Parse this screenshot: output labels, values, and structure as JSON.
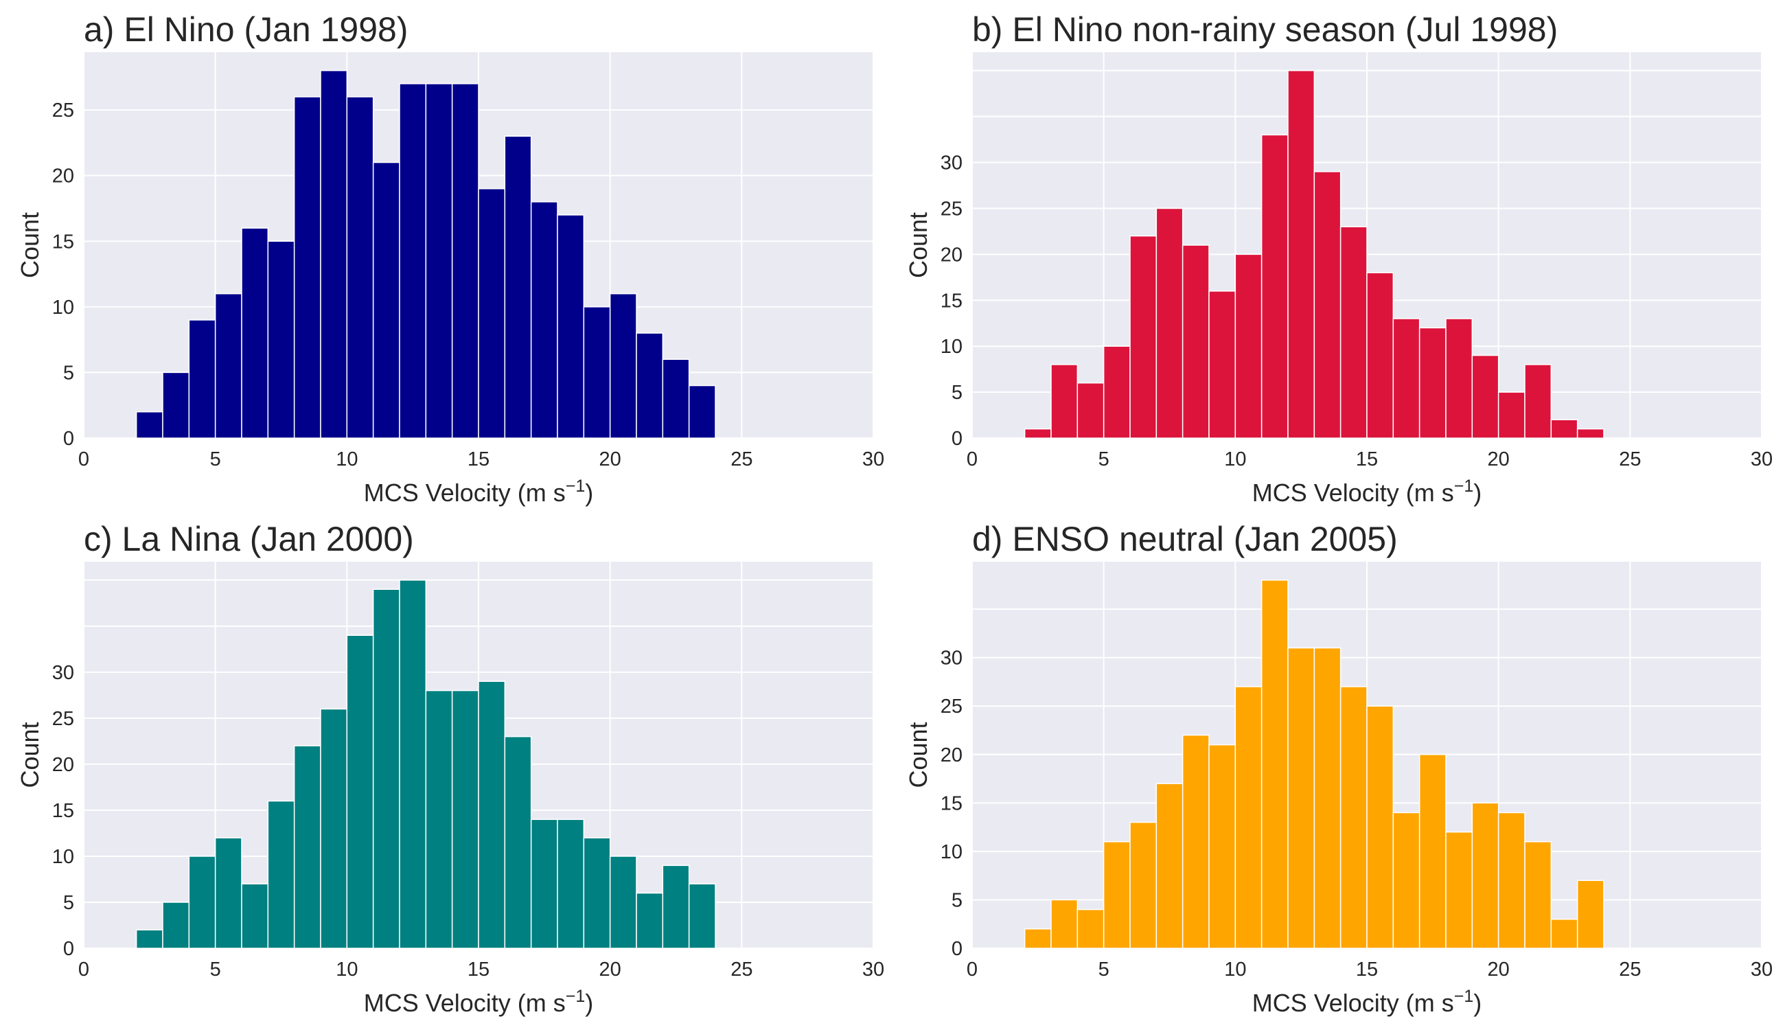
{
  "chart_data": [
    {
      "type": "bar",
      "title": "a) El Nino (Jan 1998)",
      "xlabel": "MCS Velocity (m s",
      "xlabel_sup": "−1",
      "xlabel_close": ")",
      "ylabel": "Count",
      "color": "#00008b",
      "bin_width": 1,
      "bin_start": [
        2,
        3,
        4,
        5,
        6,
        7,
        8,
        9,
        10,
        11,
        12,
        13,
        14,
        15,
        16,
        17,
        18,
        19,
        20,
        21,
        22,
        23
      ],
      "values": [
        2,
        5,
        9,
        11,
        16,
        15,
        26,
        28,
        26,
        21,
        27,
        27,
        27,
        19,
        23,
        18,
        17,
        10,
        11,
        8,
        6,
        4
      ],
      "xlim": [
        0,
        30
      ],
      "ylim": [
        0,
        29.4
      ],
      "xticks": [
        "0",
        "5",
        "10",
        "15",
        "20",
        "25",
        "30"
      ],
      "yticks": [
        "0",
        "5",
        "10",
        "15",
        "20",
        "25"
      ],
      "grid": true
    },
    {
      "type": "bar",
      "title": "b) El Nino non-rainy season (Jul 1998)",
      "xlabel": "MCS Velocity (m s",
      "xlabel_sup": "−1",
      "xlabel_close": ")",
      "ylabel": "Count",
      "color": "#dc143c",
      "bin_width": 1,
      "bin_start": [
        2,
        3,
        4,
        5,
        6,
        7,
        8,
        9,
        10,
        11,
        12,
        13,
        14,
        15,
        16,
        17,
        18,
        19,
        20,
        21,
        22,
        23
      ],
      "values": [
        1,
        8,
        6,
        10,
        22,
        25,
        21,
        16,
        20,
        33,
        40,
        29,
        23,
        18,
        13,
        12,
        13,
        9,
        5,
        8,
        2,
        1
      ],
      "xlim": [
        0,
        30
      ],
      "ylim": [
        0,
        42
      ],
      "xticks": [
        "0",
        "5",
        "10",
        "15",
        "20",
        "25",
        "30"
      ],
      "yticks": [
        "0",
        "5",
        "10",
        "15",
        "20",
        "25",
        "30"
      ],
      "grid": true
    },
    {
      "type": "bar",
      "title": "c) La Nina (Jan 2000)",
      "xlabel": "MCS Velocity (m s",
      "xlabel_sup": "−1",
      "xlabel_close": ")",
      "ylabel": "Count",
      "color": "#008080",
      "bin_width": 1,
      "bin_start": [
        2,
        3,
        4,
        5,
        6,
        7,
        8,
        9,
        10,
        11,
        12,
        13,
        14,
        15,
        16,
        17,
        18,
        19,
        20,
        21,
        22,
        23
      ],
      "values": [
        2,
        5,
        10,
        12,
        7,
        16,
        22,
        26,
        34,
        39,
        40,
        28,
        28,
        29,
        23,
        14,
        14,
        12,
        10,
        6,
        9,
        7
      ],
      "xlim": [
        0,
        30
      ],
      "ylim": [
        0,
        42
      ],
      "xticks": [
        "0",
        "5",
        "10",
        "15",
        "20",
        "25",
        "30"
      ],
      "yticks": [
        "0",
        "5",
        "10",
        "15",
        "20",
        "25",
        "30"
      ],
      "grid": true
    },
    {
      "type": "bar",
      "title": "d) ENSO neutral (Jan 2005)",
      "xlabel": "MCS Velocity (m s",
      "xlabel_sup": "−1",
      "xlabel_close": ")",
      "ylabel": "Count",
      "color": "#ffa500",
      "bin_width": 1,
      "bin_start": [
        2,
        3,
        4,
        5,
        6,
        7,
        8,
        9,
        10,
        11,
        12,
        13,
        14,
        15,
        16,
        17,
        18,
        19,
        20,
        21,
        22,
        23
      ],
      "values": [
        2,
        5,
        4,
        11,
        13,
        17,
        22,
        21,
        27,
        38,
        31,
        31,
        27,
        25,
        14,
        20,
        12,
        15,
        14,
        11,
        3,
        7
      ],
      "xlim": [
        0,
        30
      ],
      "ylim": [
        0,
        39.9
      ],
      "xticks": [
        "0",
        "5",
        "10",
        "15",
        "20",
        "25",
        "30"
      ],
      "yticks": [
        "0",
        "5",
        "10",
        "15",
        "20",
        "25",
        "30"
      ],
      "grid": true
    }
  ]
}
